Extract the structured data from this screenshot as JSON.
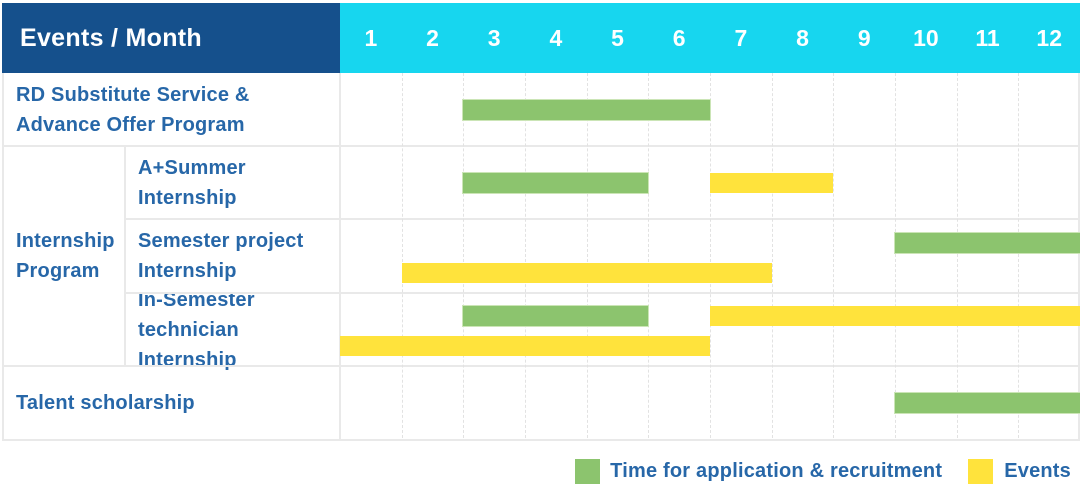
{
  "title_cell": "Events / Month",
  "months": [
    "1",
    "2",
    "3",
    "4",
    "5",
    "6",
    "7",
    "8",
    "9",
    "10",
    "11",
    "12"
  ],
  "row_labels": {
    "r0": [
      "RD Substitute Service &",
      "Advance Offer Program"
    ],
    "group": [
      "Internship",
      "Program"
    ],
    "r1": [
      "A+Summer",
      "Internship"
    ],
    "r2": [
      "Semester project",
      "Internship"
    ],
    "r3": [
      "In-Semester",
      "technician Internship"
    ],
    "r4": [
      "Talent scholarship"
    ]
  },
  "legend": {
    "green_label": "Time for application & recruitment",
    "yellow_label": "Events"
  },
  "colors": {
    "header_navy": "#15508C",
    "header_cyan": "#17D6EF",
    "green": "#8CC46E",
    "yellow": "#FFE33C",
    "label_blue": "#2767A8",
    "grid_line": "#E2E2E2"
  },
  "chart_data": {
    "type": "gantt",
    "title": "Events / Month",
    "x_unit": "month",
    "x_ticks": [
      1,
      2,
      3,
      4,
      5,
      6,
      7,
      8,
      9,
      10,
      11,
      12
    ],
    "legend": [
      {
        "color": "#8CC46E",
        "label": "Time for application & recruitment"
      },
      {
        "color": "#FFE33C",
        "label": "Events"
      }
    ],
    "tasks": [
      {
        "row": "RD Substitute Service & Advance Offer Program",
        "group": "",
        "bars": [
          {
            "kind": "application_recruitment",
            "color": "green",
            "start_month": 3,
            "end_month": 6,
            "band": "single"
          }
        ]
      },
      {
        "row": "A+Summer Internship",
        "group": "Internship Program",
        "bars": [
          {
            "kind": "application_recruitment",
            "color": "green",
            "start_month": 3,
            "end_month": 5,
            "band": "single"
          },
          {
            "kind": "event",
            "color": "yellow",
            "start_month": 7,
            "end_month": 8,
            "band": "single"
          }
        ]
      },
      {
        "row": "Semester project Internship",
        "group": "Internship Program",
        "bars": [
          {
            "kind": "application_recruitment",
            "color": "green",
            "start_month": 10,
            "end_month": 12,
            "band": "upper"
          },
          {
            "kind": "event",
            "color": "yellow",
            "start_month": 2,
            "end_month": 7,
            "band": "lower"
          }
        ]
      },
      {
        "row": "In-Semester technician Internship",
        "group": "Internship Program",
        "bars": [
          {
            "kind": "application_recruitment",
            "color": "green",
            "start_month": 3,
            "end_month": 5,
            "band": "upper"
          },
          {
            "kind": "event",
            "color": "yellow",
            "start_month": 7,
            "end_month": 12,
            "band": "upper"
          },
          {
            "kind": "event",
            "color": "yellow",
            "start_month": 1,
            "end_month": 6,
            "band": "lower"
          }
        ]
      },
      {
        "row": "Talent scholarship",
        "group": "",
        "bars": [
          {
            "kind": "application_recruitment",
            "color": "green",
            "start_month": 10,
            "end_month": 12,
            "band": "single"
          }
        ]
      }
    ]
  }
}
